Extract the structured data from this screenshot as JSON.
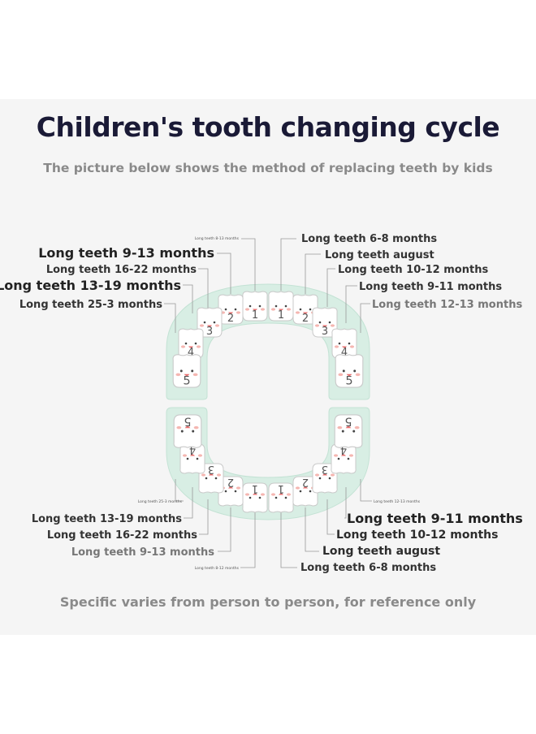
{
  "title": "Children's tooth changing cycle",
  "subtitle": "The picture below shows the method of replacing teeth by kids",
  "footer": "Specific varies from person to person, for reference only",
  "colors": {
    "panel": "#f5f5f5",
    "gum": "#d8eee4",
    "gum_edge": "#c3e2d4",
    "tooth": "#ffffff",
    "cheek": "#f3a9a3"
  },
  "upper_labels": [
    {
      "text": "Long teeth 8-13 months"
    },
    {
      "text": "Long teeth 9-13 months"
    },
    {
      "text": "Long teeth 16-22 months"
    },
    {
      "text": "Long teeth 13-19 months"
    },
    {
      "text": "Long teeth 25-3 months"
    },
    {
      "text": "Long teeth 6-8 months"
    },
    {
      "text": "Long teeth august"
    },
    {
      "text": "Long teeth 10-12 months"
    },
    {
      "text": "Long teeth 9-11 months"
    },
    {
      "text": "Long teeth 12-13 months"
    }
  ],
  "lower_labels": [
    {
      "text": "Long teeth 25-3 months"
    },
    {
      "text": "Long teeth 13-19 months"
    },
    {
      "text": "Long teeth 16-22 months"
    },
    {
      "text": "Long teeth 9-13 months"
    },
    {
      "text": "Long teeth 8-12 months"
    },
    {
      "text": "Long teeth 12-13 months"
    },
    {
      "text": "Long teeth 9-11 months"
    },
    {
      "text": "Long teeth 10-12 months"
    },
    {
      "text": "Long teeth august"
    },
    {
      "text": "Long teeth 6-8 months"
    }
  ],
  "upper_teeth": [
    {
      "number": "1",
      "icon": "smiling-tooth-icon"
    },
    {
      "number": "1",
      "icon": "smiling-tooth-icon"
    },
    {
      "number": "2",
      "icon": "smiling-tooth-icon"
    },
    {
      "number": "2",
      "icon": "smiling-tooth-icon"
    },
    {
      "number": "3",
      "icon": "smiling-tooth-icon"
    },
    {
      "number": "3",
      "icon": "smiling-tooth-icon"
    },
    {
      "number": "4",
      "icon": "smiling-tooth-icon"
    },
    {
      "number": "4",
      "icon": "smiling-tooth-icon"
    },
    {
      "number": "5",
      "icon": "smiling-tooth-icon"
    },
    {
      "number": "5",
      "icon": "smiling-tooth-icon"
    }
  ],
  "lower_teeth": [
    {
      "number": "1",
      "icon": "smiling-tooth-icon"
    },
    {
      "number": "1",
      "icon": "smiling-tooth-icon"
    },
    {
      "number": "2",
      "icon": "smiling-tooth-icon"
    },
    {
      "number": "2",
      "icon": "smiling-tooth-icon"
    },
    {
      "number": "3",
      "icon": "smiling-tooth-icon"
    },
    {
      "number": "3",
      "icon": "smiling-tooth-icon"
    },
    {
      "number": "4",
      "icon": "smiling-tooth-icon"
    },
    {
      "number": "4",
      "icon": "smiling-tooth-icon"
    },
    {
      "number": "5",
      "icon": "smiling-tooth-icon"
    },
    {
      "number": "5",
      "icon": "smiling-tooth-icon"
    }
  ]
}
